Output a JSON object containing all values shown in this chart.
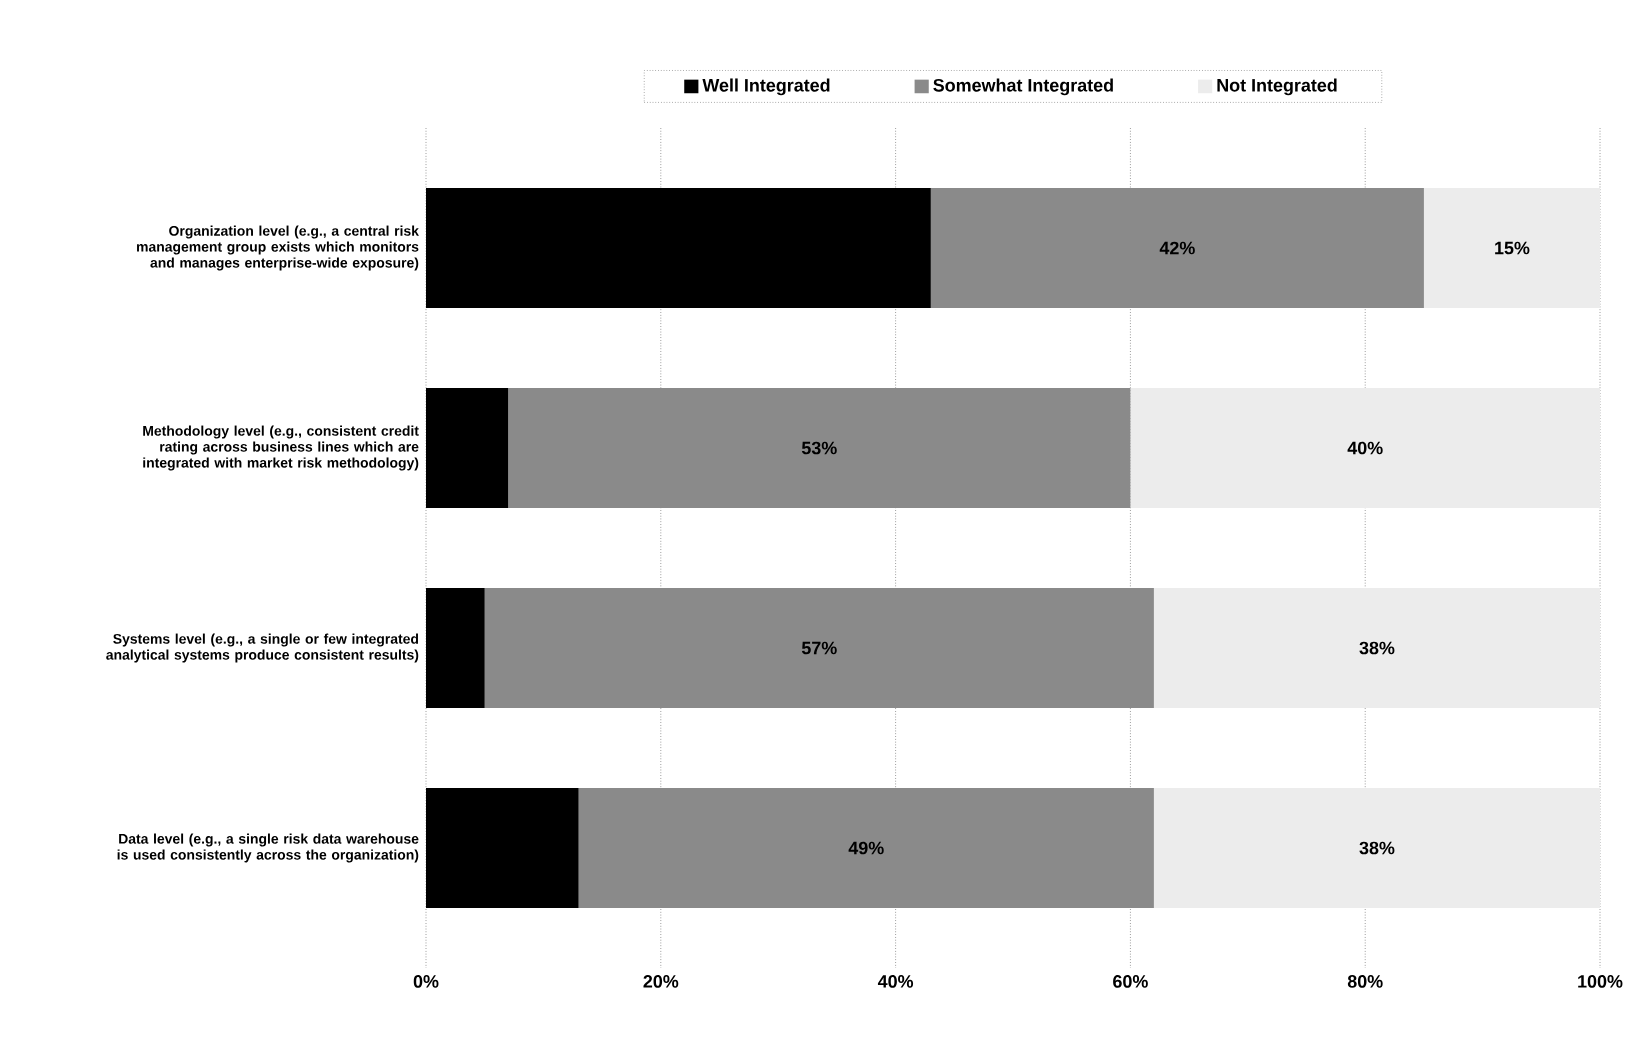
{
  "chart_data": {
    "type": "bar",
    "orientation": "horizontal",
    "stacked": true,
    "categories": [
      "Organization level (e.g., a central risk management group exists which monitors and manages enterprise-wide exposure)",
      "Methodology level (e.g., consistent credit rating across business lines which are integrated with market risk methodology)",
      "Systems level (e.g., a single or few integrated analytical systems produce consistent results)",
      "Data level (e.g., a single risk data warehouse is used consistently across the organization)"
    ],
    "series": [
      {
        "name": "Well Integrated",
        "color": "#000000",
        "values": [
          43,
          7,
          5,
          13
        ]
      },
      {
        "name": "Somewhat Integrated",
        "color": "#8a8a8a",
        "values": [
          42,
          53,
          57,
          49
        ],
        "value_labels": [
          "42%",
          "53%",
          "57%",
          "49%"
        ]
      },
      {
        "name": "Not Integrated",
        "color": "#ececec",
        "values": [
          15,
          40,
          38,
          38
        ],
        "value_labels": [
          "15%",
          "40%",
          "38%",
          "38%"
        ]
      }
    ],
    "xlim": [
      0,
      100
    ],
    "xticks": [
      {
        "value": 0,
        "label": "0%"
      },
      {
        "value": 20,
        "label": "20%"
      },
      {
        "value": 40,
        "label": "40%"
      },
      {
        "value": 60,
        "label": "60%"
      },
      {
        "value": 80,
        "label": "80%"
      },
      {
        "value": 100,
        "label": "100%"
      }
    ],
    "grid": "x",
    "legend": "top"
  }
}
